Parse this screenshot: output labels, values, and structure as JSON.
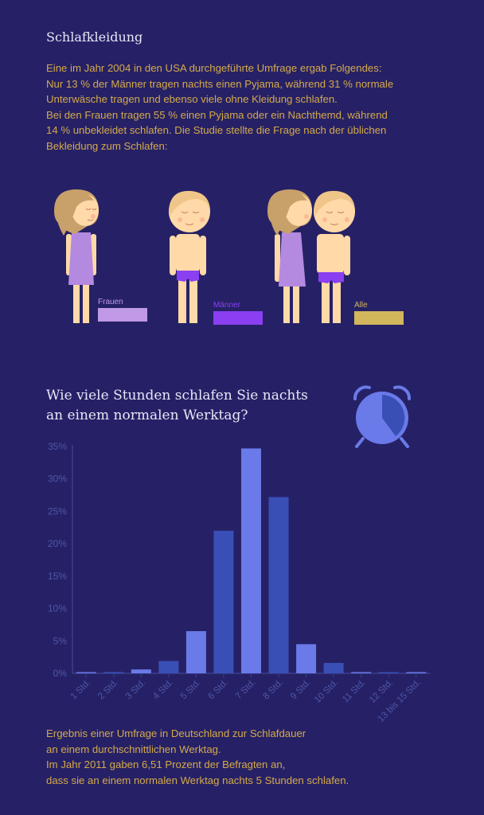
{
  "section": {
    "title": "Schlafkleidung",
    "intro_lines": [
      "Eine im Jahr 2004 in den USA durchgeführte Umfrage ergab Folgendes:",
      "Nur 13 % der Männer tragen nachts einen Pyjama, während 31 %  normale",
      "Unterwäsche tragen und ebenso viele ohne Kleidung schlafen.",
      "Bei den Frauen tragen 55 % einen Pyjama oder ein Nachthemd, während",
      "14 % unbekleidet schlafen. Die Studie stellte die Frage nach der üblichen",
      "Bekleidung zum Schlafen:"
    ]
  },
  "legend": [
    {
      "label": "Frauen",
      "color": "#c09ae6",
      "label_color": "#c09ae6"
    },
    {
      "label": "Männer",
      "color": "#8a3ff0",
      "label_color": "#8a3ff0"
    },
    {
      "label": "Alle",
      "color": "#d2b65c",
      "label_color": "#d2b65c"
    }
  ],
  "question": {
    "lines": [
      "Wie viele Stunden schlafen Sie nachts",
      "an einem normalen Werktag?"
    ],
    "icon": "alarm-clock-icon"
  },
  "colors": {
    "background": "#262166",
    "bar_light": "#6a7ae8",
    "bar_dark": "#3a4fb6",
    "axis": "#3c3f8a",
    "tick_label": "#4e56a8",
    "skin": "#ffd9a8",
    "hair": "#c8a06a",
    "nightdress": "#b48ae0",
    "underwear": "#8a3ff0",
    "clock": "#6a7ae8",
    "clock_fill": "#3a4fb6"
  },
  "chart_data": {
    "type": "bar",
    "categories": [
      "1 Std.",
      "2 Std.",
      "3 Std.",
      "4 Std.",
      "5 Std.",
      "6 Std.",
      "7 Std.",
      "8 Std.",
      "9 Std.",
      "10 Std.",
      "11 Std.",
      "12 Std.",
      "13 bis 15 Std."
    ],
    "values": [
      0.1,
      0.2,
      0.6,
      1.9,
      6.51,
      22,
      34.7,
      27.2,
      4.5,
      1.6,
      0.1,
      0.1,
      0.1
    ],
    "y_ticks": [
      "0%",
      "5%",
      "10%",
      "15%",
      "20%",
      "25%",
      "30%",
      "35%"
    ],
    "ylim": [
      0,
      35
    ],
    "grid": false
  },
  "footer": {
    "lines": [
      "Ergebnis einer Umfrage in Deutschland zur Schlafdauer",
      "an einem durchschnittlichen Werktag.",
      "Im Jahr 2011 gaben 6,51 Prozent der Befragten an,",
      "dass sie an einem normalen Werktag nachts 5 Stunden schlafen."
    ]
  }
}
